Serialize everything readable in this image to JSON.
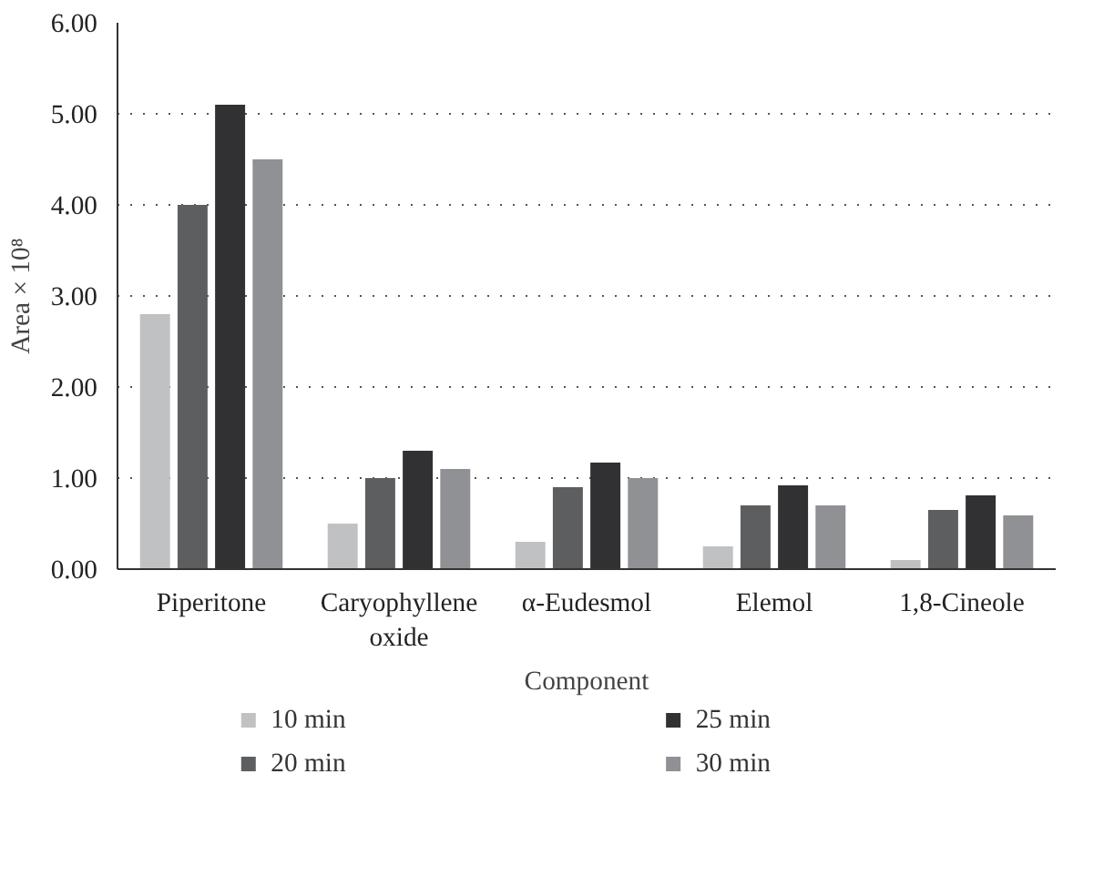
{
  "chart_data": {
    "type": "bar",
    "xlabel": "Component",
    "ylabel": "Area × 10⁸",
    "categories": [
      "Piperitone",
      "Caryophyllene oxide",
      "α-Eudesmol",
      "Elemol",
      "1,8-Cineole"
    ],
    "series": [
      {
        "name": "10 min",
        "color": "#c0c1c3",
        "values": [
          2.8,
          0.5,
          0.3,
          0.25,
          0.1
        ]
      },
      {
        "name": "20 min",
        "color": "#5d5e60",
        "values": [
          4.0,
          1.0,
          0.9,
          0.7,
          0.65
        ]
      },
      {
        "name": "25 min",
        "color": "#313032",
        "values": [
          5.1,
          1.3,
          1.17,
          0.92,
          0.81
        ]
      },
      {
        "name": "30 min",
        "color": "#909194",
        "values": [
          4.5,
          1.1,
          1.0,
          0.7,
          0.59
        ]
      }
    ],
    "ylim": [
      0,
      6
    ],
    "yticks": [
      {
        "value": 0,
        "label": "0.00"
      },
      {
        "value": 1,
        "label": "1.00"
      },
      {
        "value": 2,
        "label": "2.00"
      },
      {
        "value": 3,
        "label": "3.00"
      },
      {
        "value": 4,
        "label": "4.00"
      },
      {
        "value": 5,
        "label": "5.00"
      },
      {
        "value": 6,
        "label": "6.00"
      }
    ],
    "grid": "y",
    "legend": "bottom"
  }
}
